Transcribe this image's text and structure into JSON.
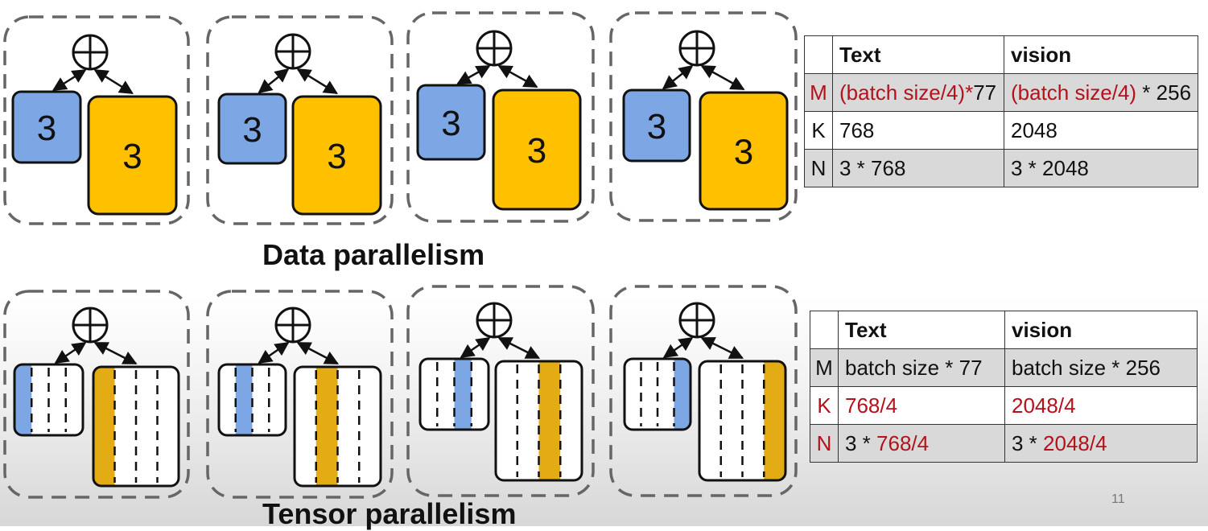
{
  "captions": {
    "data": "Data parallelism",
    "tensor": "Tensor parallelism"
  },
  "page_number": "11",
  "data_parallel": {
    "small_block_number": "3",
    "large_block_number": "3",
    "table": {
      "headers": [
        "",
        "Text",
        "vision"
      ],
      "rows": [
        {
          "label": "M",
          "text": [
            "(batch size/4)",
            "*",
            "77"
          ],
          "vision": [
            "(batch size/4)",
            " * 256"
          ]
        },
        {
          "label": "K",
          "text": "768",
          "vision": "2048"
        },
        {
          "label": "N",
          "text": "3 * 768",
          "vision": "3 * 2048"
        }
      ]
    }
  },
  "tensor_parallel": {
    "highlighted_slice_per_device": [
      0,
      1,
      2,
      3
    ],
    "table": {
      "headers": [
        "",
        "Text",
        "vision"
      ],
      "rows": [
        {
          "label": "M",
          "text": "batch size * 77",
          "vision": "batch size * 256"
        },
        {
          "label": "K",
          "text": "768/4",
          "vision": "2048/4"
        },
        {
          "label": "N",
          "text": [
            "3 * ",
            "768/4"
          ],
          "vision": [
            "3 * ",
            "2048/4"
          ]
        }
      ]
    }
  },
  "colors": {
    "blue": "#7da6e4",
    "yellow_data": "#ffc000",
    "yellow_tensor": "#e3ac14",
    "red_text": "#b3121b",
    "table_shade": "#d9d9d9",
    "dashed_border": "#666666"
  }
}
